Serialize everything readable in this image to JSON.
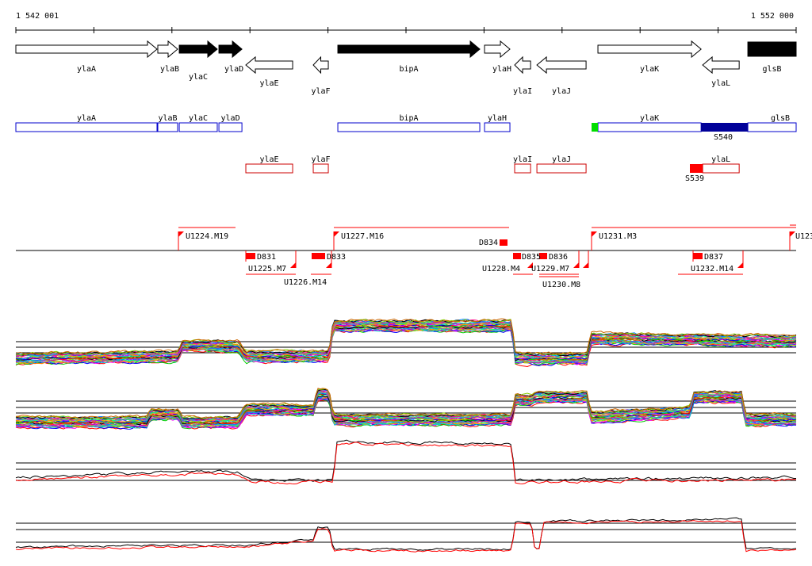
{
  "ruler": {
    "start_label": "1 542 001",
    "end_label": "1 552 000",
    "start": 1542001,
    "end": 1552000
  },
  "genes": [
    {
      "name": "ylaA",
      "start": 1542001,
      "end": 1543810,
      "strand": "+",
      "fill": "white"
    },
    {
      "name": "ylaB",
      "start": 1543820,
      "end": 1544074,
      "strand": "+",
      "fill": "white"
    },
    {
      "name": "ylaC",
      "start": 1544095,
      "end": 1544582,
      "strand": "+",
      "fill": "black"
    },
    {
      "name": "ylaD",
      "start": 1544603,
      "end": 1544898,
      "strand": "+",
      "fill": "black"
    },
    {
      "name": "ylaE",
      "start": 1544948,
      "end": 1545548,
      "strand": "-",
      "fill": "white"
    },
    {
      "name": "ylaF",
      "start": 1545812,
      "end": 1546005,
      "strand": "-",
      "fill": "white"
    },
    {
      "name": "bipA",
      "start": 1546127,
      "end": 1547946,
      "strand": "+",
      "fill": "black"
    },
    {
      "name": "ylaH",
      "start": 1548007,
      "end": 1548332,
      "strand": "+",
      "fill": "white"
    },
    {
      "name": "ylaI",
      "start": 1548393,
      "end": 1548597,
      "strand": "-",
      "fill": "white"
    },
    {
      "name": "ylaJ",
      "start": 1548678,
      "end": 1549308,
      "strand": "-",
      "fill": "white"
    },
    {
      "name": "ylaK",
      "start": 1549460,
      "end": 1550782,
      "strand": "+",
      "fill": "white"
    },
    {
      "name": "ylaL",
      "start": 1550802,
      "end": 1551270,
      "strand": "-",
      "fill": "white"
    },
    {
      "name": "glsB",
      "start": 1551381,
      "end": 1552001,
      "strand": "+",
      "fill": "black"
    }
  ],
  "features": {
    "s540": "S540",
    "s539": "S539"
  },
  "segments": {
    "u1224": "U1224.M19",
    "u1227": "U1227.M16",
    "u1231": "U1231.M3",
    "u123x": "U123",
    "d834": "D834",
    "d831": "D831",
    "u1225": "U1225.M7",
    "u1226": "U1226.M14",
    "d833": "D833",
    "d835": "D835",
    "u1228": "U1228.M4",
    "d836": "D836",
    "u1229": "U1229.M7",
    "u1230": "U1230.M8",
    "d837": "D837",
    "u1232": "U1232.M14"
  },
  "colors": {
    "plus_box": "#0000cc",
    "minus_box": "#cc0000",
    "segment": "#ff0000",
    "s540": "#000099",
    "green": "#00dd00"
  },
  "tracks": [
    {
      "name": "panel-1",
      "copies": 30,
      "profile": [
        [
          1542001,
          0.15
        ],
        [
          1544084,
          0.2
        ],
        [
          1544135,
          0.4
        ],
        [
          1544847,
          0.4
        ],
        [
          1544948,
          0.2
        ],
        [
          1546015,
          0.2
        ],
        [
          1546066,
          0.8
        ],
        [
          1548353,
          0.8
        ],
        [
          1548403,
          0.15
        ],
        [
          1549318,
          0.15
        ],
        [
          1549369,
          0.55
        ],
        [
          1552000,
          0.5
        ]
      ]
    },
    {
      "name": "panel-2",
      "copies": 30,
      "profile": [
        [
          1542001,
          0.2
        ],
        [
          1543678,
          0.2
        ],
        [
          1543720,
          0.35
        ],
        [
          1544084,
          0.35
        ],
        [
          1544135,
          0.2
        ],
        [
          1544847,
          0.2
        ],
        [
          1544948,
          0.45
        ],
        [
          1545812,
          0.45
        ],
        [
          1545863,
          0.75
        ],
        [
          1546015,
          0.75
        ],
        [
          1546066,
          0.25
        ],
        [
          1548353,
          0.25
        ],
        [
          1548403,
          0.65
        ],
        [
          1548607,
          0.65
        ],
        [
          1548650,
          0.7
        ],
        [
          1549318,
          0.7
        ],
        [
          1549369,
          0.3
        ],
        [
          1550640,
          0.4
        ],
        [
          1550690,
          0.7
        ],
        [
          1551300,
          0.7
        ],
        [
          1551350,
          0.25
        ],
        [
          1552000,
          0.25
        ]
      ]
    },
    {
      "name": "panel-3",
      "copies": 2,
      "profile": [
        [
          1542001,
          0.2
        ],
        [
          1544135,
          0.3
        ],
        [
          1544847,
          0.3
        ],
        [
          1545000,
          0.15
        ],
        [
          1546066,
          0.15
        ],
        [
          1546117,
          0.9
        ],
        [
          1548353,
          0.85
        ],
        [
          1548403,
          0.15
        ],
        [
          1552000,
          0.2
        ]
      ]
    },
    {
      "name": "panel-4",
      "copies": 2,
      "profile": [
        [
          1542001,
          0.1
        ],
        [
          1545000,
          0.15
        ],
        [
          1545812,
          0.3
        ],
        [
          1545863,
          0.6
        ],
        [
          1546015,
          0.6
        ],
        [
          1546066,
          0.05
        ],
        [
          1548353,
          0.05
        ],
        [
          1548403,
          0.75
        ],
        [
          1548607,
          0.75
        ],
        [
          1548650,
          0.1
        ],
        [
          1548709,
          0.1
        ],
        [
          1548760,
          0.75
        ],
        [
          1551300,
          0.8
        ],
        [
          1551350,
          0.05
        ],
        [
          1552000,
          0.05
        ]
      ]
    }
  ]
}
